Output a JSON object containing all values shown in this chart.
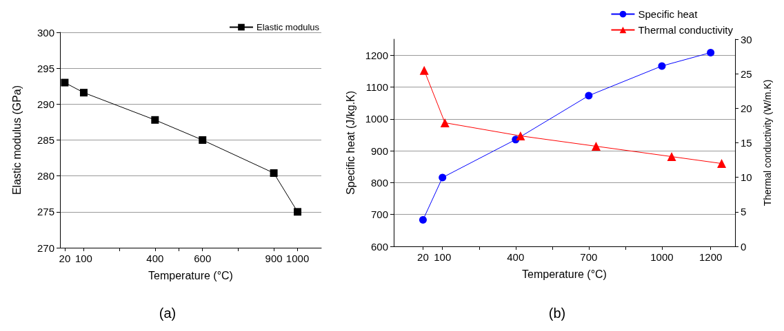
{
  "chart_data": [
    {
      "type": "line",
      "xlabel": "Temperature (°C)",
      "ylabel": "Elastic modulus (GPa)",
      "annotations": [
        "(a)"
      ],
      "xlim": [
        0,
        1100
      ],
      "xticks": [
        20,
        100,
        {
          "value": 250,
          "label": null
        },
        400,
        {
          "value": 500,
          "label": null
        },
        600,
        {
          "value": 750,
          "label": null
        },
        900,
        1000
      ],
      "ylim": [
        270,
        300
      ],
      "yticks": [
        270,
        275,
        280,
        285,
        290,
        295,
        300
      ],
      "grid": "y",
      "legend": "top right",
      "marker": "square",
      "series": [
        {
          "name": "Elastic modulus",
          "color": "#000000",
          "x": [
            20,
            100,
            400,
            600,
            900,
            1000
          ],
          "values": [
            293,
            291.6,
            287.8,
            285,
            280.4,
            275
          ]
        }
      ]
    },
    {
      "type": "line",
      "xlabel": "Temperature (°C)",
      "ylabel": "Specific heat (J/kg.K)",
      "y2label": "Thermal conductivity (W/m.K)",
      "annotations": [
        "(b)"
      ],
      "xlim": [
        -100,
        1300
      ],
      "xticks": [
        20,
        100,
        {
          "value": 250,
          "label": null
        },
        400,
        {
          "value": 550,
          "label": null
        },
        700,
        {
          "value": 850,
          "label": null
        },
        1000,
        1200
      ],
      "ylim": [
        600,
        1250
      ],
      "yticks": [
        600,
        700,
        800,
        900,
        1000,
        1100,
        1200
      ],
      "y2lim": [
        0,
        30
      ],
      "y2ticks": [
        0,
        5,
        10,
        15,
        20,
        25,
        30
      ],
      "grid": "y",
      "legend": "top right",
      "series": [
        {
          "name": "Specific heat",
          "color": "#0000ff",
          "marker": "circle",
          "x": [
            20,
            100,
            400,
            700,
            1000,
            1200
          ],
          "values": [
            683,
            816,
            935,
            1073,
            1166,
            1208
          ]
        },
        {
          "name": "Thermal conductivity",
          "color": "#ff0000",
          "marker": "triangle",
          "axis": "y2",
          "x": [
            25,
            110,
            420,
            730,
            1040,
            1245
          ],
          "values": [
            25.5,
            17.9,
            16.0,
            14.5,
            13.0,
            12.0
          ]
        }
      ]
    }
  ]
}
